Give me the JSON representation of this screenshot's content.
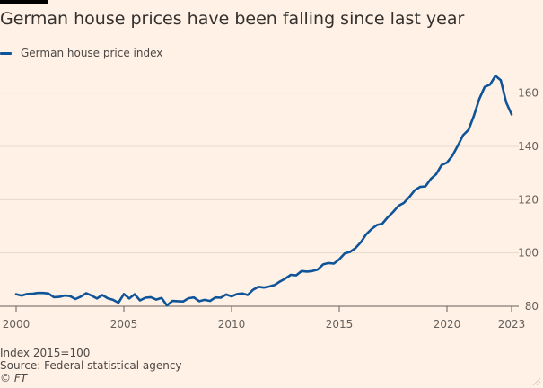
{
  "title": "German house prices have been falling since last year",
  "legend": [
    {
      "label": "German house price index",
      "color": "#0f5499"
    }
  ],
  "footer": {
    "note": "Index 2015=100",
    "source": "Source: Federal statistical agency",
    "credit": "© FT"
  },
  "chart_data": {
    "type": "line",
    "xlim": [
      2000,
      2023
    ],
    "ylim": [
      80,
      170
    ],
    "x_ticks": [
      2000,
      2005,
      2010,
      2015,
      2020,
      2023
    ],
    "y_ticks": [
      80,
      100,
      120,
      140,
      160
    ],
    "grid": true,
    "legend_position": "top-left",
    "series": [
      {
        "name": "German house price index",
        "color": "#0f5499",
        "points": [
          [
            2000.0,
            84.5
          ],
          [
            2000.25,
            84.0
          ],
          [
            2000.5,
            84.6
          ],
          [
            2000.75,
            84.7
          ],
          [
            2001.0,
            85.0
          ],
          [
            2001.25,
            85.0
          ],
          [
            2001.5,
            84.8
          ],
          [
            2001.75,
            83.4
          ],
          [
            2002.0,
            83.5
          ],
          [
            2002.25,
            84.0
          ],
          [
            2002.5,
            83.8
          ],
          [
            2002.75,
            82.7
          ],
          [
            2003.0,
            83.6
          ],
          [
            2003.25,
            84.9
          ],
          [
            2003.5,
            84.0
          ],
          [
            2003.75,
            82.9
          ],
          [
            2004.0,
            84.2
          ],
          [
            2004.25,
            83.0
          ],
          [
            2004.5,
            82.4
          ],
          [
            2004.75,
            81.3
          ],
          [
            2005.0,
            84.6
          ],
          [
            2005.25,
            82.9
          ],
          [
            2005.5,
            84.5
          ],
          [
            2005.75,
            82.2
          ],
          [
            2006.0,
            83.2
          ],
          [
            2006.25,
            83.4
          ],
          [
            2006.5,
            82.5
          ],
          [
            2006.75,
            83.1
          ],
          [
            2007.0,
            80.3
          ],
          [
            2007.25,
            82.0
          ],
          [
            2007.5,
            81.9
          ],
          [
            2007.75,
            81.8
          ],
          [
            2008.0,
            83.0
          ],
          [
            2008.25,
            83.3
          ],
          [
            2008.5,
            81.9
          ],
          [
            2008.75,
            82.4
          ],
          [
            2009.0,
            82.0
          ],
          [
            2009.25,
            83.3
          ],
          [
            2009.5,
            83.2
          ],
          [
            2009.75,
            84.4
          ],
          [
            2010.0,
            83.7
          ],
          [
            2010.25,
            84.6
          ],
          [
            2010.5,
            84.8
          ],
          [
            2010.75,
            84.2
          ],
          [
            2011.0,
            86.2
          ],
          [
            2011.25,
            87.3
          ],
          [
            2011.5,
            87.0
          ],
          [
            2011.75,
            87.4
          ],
          [
            2012.0,
            88.0
          ],
          [
            2012.25,
            89.3
          ],
          [
            2012.5,
            90.4
          ],
          [
            2012.75,
            91.8
          ],
          [
            2013.0,
            91.6
          ],
          [
            2013.25,
            93.2
          ],
          [
            2013.5,
            93.0
          ],
          [
            2013.75,
            93.2
          ],
          [
            2014.0,
            93.8
          ],
          [
            2014.25,
            95.7
          ],
          [
            2014.5,
            96.2
          ],
          [
            2014.75,
            96.0
          ],
          [
            2015.0,
            97.6
          ],
          [
            2015.25,
            99.8
          ],
          [
            2015.5,
            100.4
          ],
          [
            2015.75,
            101.8
          ],
          [
            2016.0,
            104.0
          ],
          [
            2016.25,
            107.0
          ],
          [
            2016.5,
            109.0
          ],
          [
            2016.75,
            110.5
          ],
          [
            2017.0,
            111.0
          ],
          [
            2017.25,
            113.4
          ],
          [
            2017.5,
            115.4
          ],
          [
            2017.75,
            117.7
          ],
          [
            2018.0,
            118.8
          ],
          [
            2018.25,
            121.0
          ],
          [
            2018.5,
            123.5
          ],
          [
            2018.75,
            124.8
          ],
          [
            2019.0,
            125.0
          ],
          [
            2019.25,
            127.8
          ],
          [
            2019.5,
            129.6
          ],
          [
            2019.75,
            133.0
          ],
          [
            2020.0,
            133.9
          ],
          [
            2020.25,
            136.5
          ],
          [
            2020.5,
            140.2
          ],
          [
            2020.75,
            144.2
          ],
          [
            2021.0,
            146.2
          ],
          [
            2021.25,
            151.5
          ],
          [
            2021.5,
            157.8
          ],
          [
            2021.75,
            162.3
          ],
          [
            2022.0,
            163.2
          ],
          [
            2022.25,
            166.5
          ],
          [
            2022.5,
            164.8
          ],
          [
            2022.75,
            156.5
          ],
          [
            2023.0,
            152.0
          ]
        ]
      }
    ]
  }
}
